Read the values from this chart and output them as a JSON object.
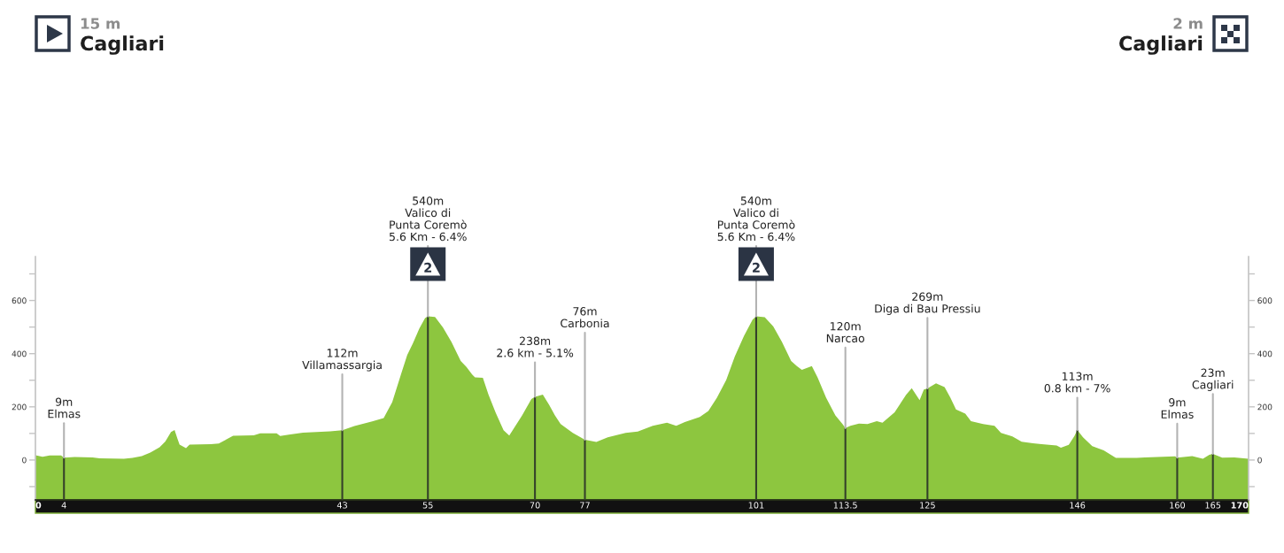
{
  "chart_data": {
    "type": "area",
    "color": "#8dc63f",
    "x": [
      0,
      1,
      2,
      3.6,
      4,
      5.5,
      8,
      9,
      12.4,
      13.6,
      14.9,
      16.1,
      17.4,
      18.2,
      19,
      19.5,
      19.9,
      20.2,
      21.1,
      21.6,
      24.6,
      25.7,
      27.7,
      30.6,
      31.5,
      33.8,
      34.3,
      35.5,
      37.5,
      41.3,
      43,
      44.7,
      47.2,
      48.8,
      50,
      51.3,
      52.1,
      52.9,
      53.8,
      54.6,
      55,
      56,
      57.1,
      58.3,
      59.6,
      60.4,
      61.2,
      61.6,
      62.7,
      63.5,
      64.5,
      65.6,
      66.4,
      68.2,
      69.5,
      70,
      71.1,
      72,
      72.8,
      73.6,
      75.3,
      77,
      78.6,
      80.2,
      82.7,
      84.4,
      86.5,
      88.5,
      89.8,
      91,
      93.1,
      94.3,
      95.5,
      96.8,
      98,
      99.3,
      100.5,
      101,
      102.2,
      103.4,
      104.6,
      105.9,
      106.7,
      107.4,
      108.8,
      109.6,
      110.8,
      112.1,
      113.1,
      113.5,
      114.2,
      115.4,
      116.6,
      117.9,
      118.7,
      120.4,
      122,
      122.8,
      123.9,
      124.5,
      125,
      126.2,
      127.4,
      128.2,
      129,
      130.3,
      131.1,
      132.8,
      134.4,
      135.3,
      136.9,
      138.2,
      139.8,
      141,
      143.1,
      143.7,
      144.8,
      145.6,
      146,
      146.8,
      148.1,
      149.7,
      151.4,
      154.3,
      155.5,
      159.7,
      160,
      162.1,
      163.6,
      164.5,
      165,
      166.3,
      168,
      170
    ],
    "values": [
      18,
      12,
      17,
      17,
      9,
      11,
      10,
      6,
      5,
      8,
      15,
      28,
      48,
      70,
      105,
      113,
      80,
      58,
      45,
      58,
      60,
      62,
      91,
      93,
      100,
      100,
      90,
      95,
      103,
      108,
      112,
      128,
      145,
      158,
      218,
      328,
      395,
      439,
      495,
      534,
      540,
      538,
      499,
      444,
      372,
      350,
      322,
      311,
      309,
      245,
      178,
      112,
      92,
      168,
      229,
      238,
      246,
      207,
      168,
      135,
      102,
      76,
      68,
      85,
      102,
      107,
      129,
      140,
      129,
      143,
      162,
      184,
      234,
      301,
      389,
      467,
      528,
      540,
      537,
      502,
      445,
      372,
      353,
      339,
      353,
      311,
      234,
      168,
      135,
      120,
      129,
      137,
      135,
      146,
      140,
      179,
      245,
      270,
      225,
      265,
      269,
      288,
      274,
      235,
      190,
      174,
      146,
      135,
      129,
      102,
      89,
      69,
      63,
      60,
      55,
      46,
      57,
      90,
      113,
      85,
      52,
      36,
      8,
      8,
      10,
      14,
      9,
      15,
      5,
      20,
      23,
      9,
      10,
      5
    ],
    "xlim": [
      0,
      170
    ],
    "xticks": [
      0,
      4,
      43,
      55,
      70,
      77,
      101,
      113.5,
      125,
      146,
      160,
      165,
      170
    ],
    "ylim": [
      -150,
      765
    ],
    "yticks": [
      {
        "value": -100,
        "label": null
      },
      0,
      {
        "value": 100,
        "label": null
      },
      200,
      {
        "value": 300,
        "label": null
      },
      400,
      {
        "value": 500,
        "label": null
      },
      600,
      {
        "value": 700,
        "label": null
      }
    ],
    "y2lim": [
      -150,
      765
    ],
    "y2ticks": [
      {
        "value": -100,
        "label": null
      },
      0,
      {
        "value": 100,
        "label": null
      },
      200,
      {
        "value": 300,
        "label": null
      },
      400,
      {
        "value": 500,
        "label": null
      },
      600,
      {
        "value": 700,
        "label": null
      }
    ],
    "bands": [
      {
        "axis": "y",
        "from": -150,
        "to": 0,
        "color": "#8dc63f"
      }
    ],
    "ref_lines": [
      {
        "axis": "x",
        "value": 4,
        "color": "#34402a"
      },
      {
        "axis": "x",
        "value": 43,
        "color": "#34402a"
      },
      {
        "axis": "x",
        "value": 55,
        "color": "#34402a"
      },
      {
        "axis": "x",
        "value": 70,
        "color": "#34402a"
      },
      {
        "axis": "x",
        "value": 77,
        "color": "#34402a"
      },
      {
        "axis": "x",
        "value": 101,
        "color": "#34402a"
      },
      {
        "axis": "x",
        "value": 113.5,
        "color": "#34402a"
      },
      {
        "axis": "x",
        "value": 125,
        "color": "#34402a"
      },
      {
        "axis": "x",
        "value": 146,
        "color": "#34402a"
      },
      {
        "axis": "x",
        "value": 160,
        "color": "#34402a"
      },
      {
        "axis": "x",
        "value": 165,
        "color": "#34402a"
      }
    ],
    "annotations": [
      "15 m",
      "Cagliari",
      "2 m",
      "Cagliari",
      {
        "text": "9m\nElmas",
        "x": 4,
        "y": 9
      },
      {
        "text": "112m\nVillamassargia",
        "x": 43,
        "y": 112
      },
      {
        "text": "540m\nValico di\nPunta Coremò\n5.6 Km - 6.4%",
        "x": 55,
        "y": 540
      },
      {
        "text": "2",
        "x": 55,
        "y": 540
      },
      {
        "text": "238m\n2.6 km - 5.1%",
        "x": 70,
        "y": 238
      },
      {
        "text": "76m\nCarbonia",
        "x": 77,
        "y": 76
      },
      {
        "text": "540m\nValico di\nPunta Coremò\n5.6 Km - 6.4%",
        "x": 101,
        "y": 540
      },
      {
        "text": "2",
        "x": 101,
        "y": 540
      },
      {
        "text": "120m\nNarcao",
        "x": 113.5,
        "y": 120
      },
      {
        "text": "269m\nDiga di Bau Pressiu",
        "x": 125,
        "y": 269
      },
      {
        "text": "113m\n0.8 km - 7%",
        "x": 146,
        "y": 113
      },
      {
        "text": "9m\nElmas",
        "x": 160,
        "y": 9
      },
      {
        "text": "23m\nCagliari",
        "x": 165,
        "y": 23
      }
    ]
  }
}
